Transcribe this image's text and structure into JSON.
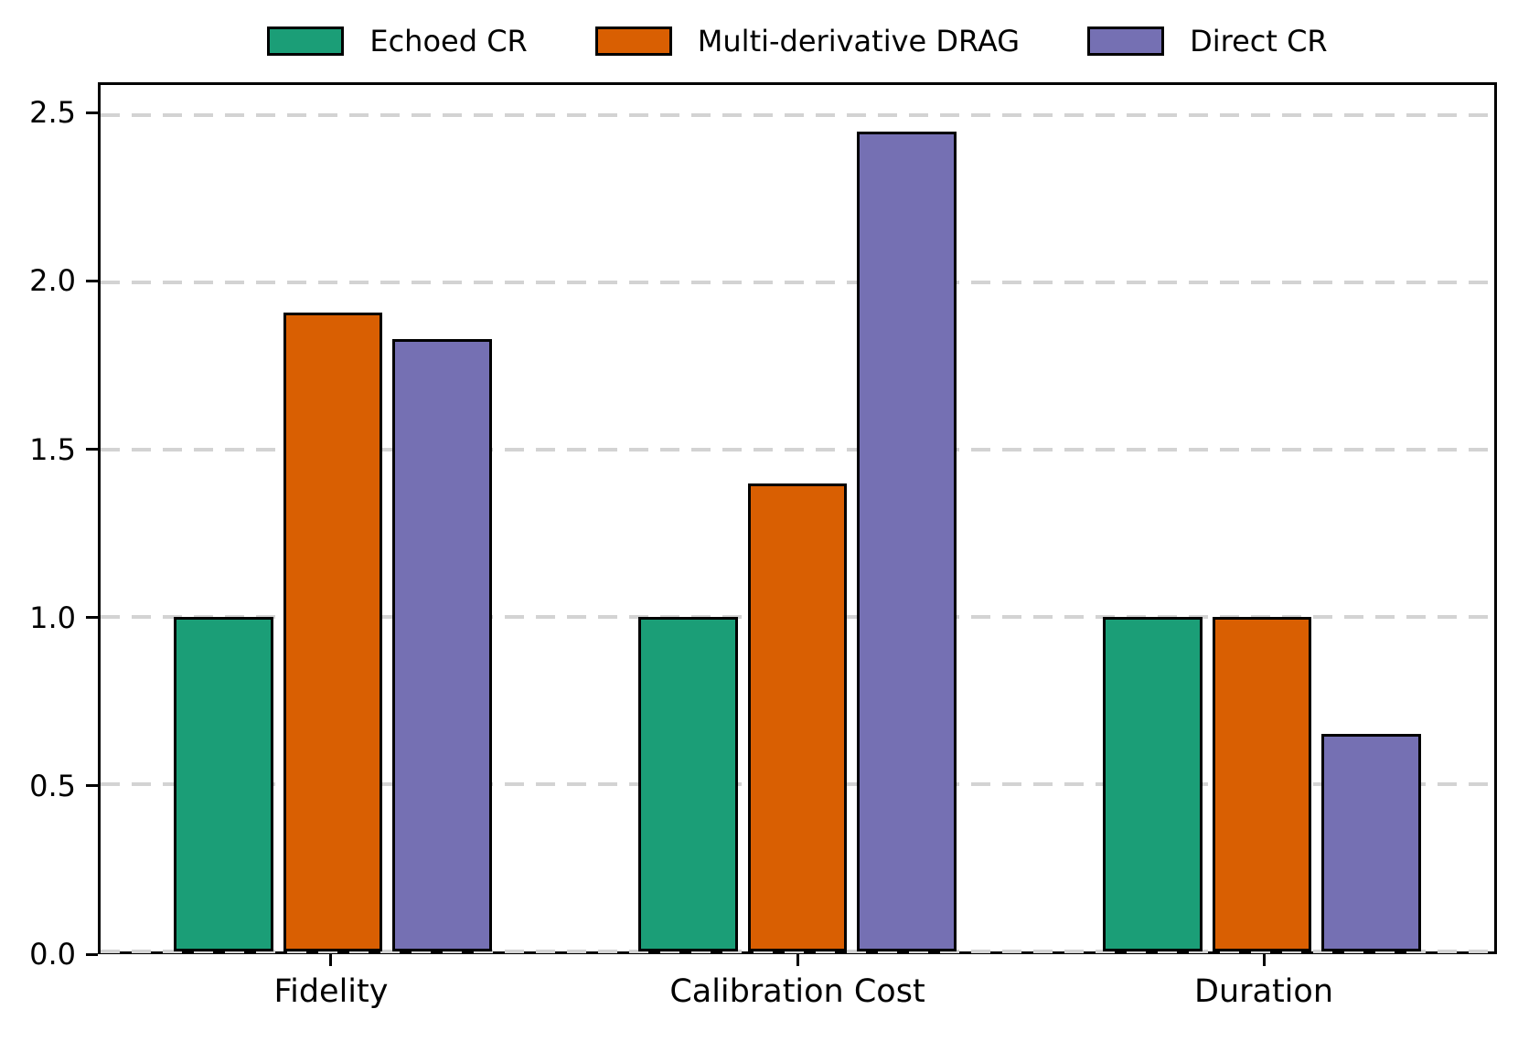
{
  "chart_data": {
    "type": "bar",
    "title": "",
    "xlabel": "",
    "ylabel": "",
    "categories": [
      "Fidelity",
      "Calibration Cost",
      "Duration"
    ],
    "series": [
      {
        "name": "Echoed CR",
        "color": "#1b9e77",
        "values": [
          1.0,
          1.0,
          1.0
        ]
      },
      {
        "name": "Multi-derivative DRAG",
        "color": "#d95f02",
        "values": [
          1.91,
          1.4,
          1.0
        ]
      },
      {
        "name": "Direct CR",
        "color": "#7570b3",
        "values": [
          1.83,
          2.45,
          0.65
        ]
      }
    ],
    "y_ticks": [
      0,
      0.5,
      1.0,
      1.5,
      2.0,
      2.5
    ],
    "y_tick_labels": [
      "0.0",
      "0.5",
      "1.0",
      "1.5",
      "2.0",
      "2.5"
    ],
    "ylim": [
      0,
      2.59
    ],
    "grid": {
      "axis": "y",
      "style": "dashed",
      "color": "#d3d3d3"
    },
    "legend": {
      "position": "top-center",
      "frame": false
    },
    "bar_edge_color": "#000000",
    "background_color": "#ffffff"
  }
}
